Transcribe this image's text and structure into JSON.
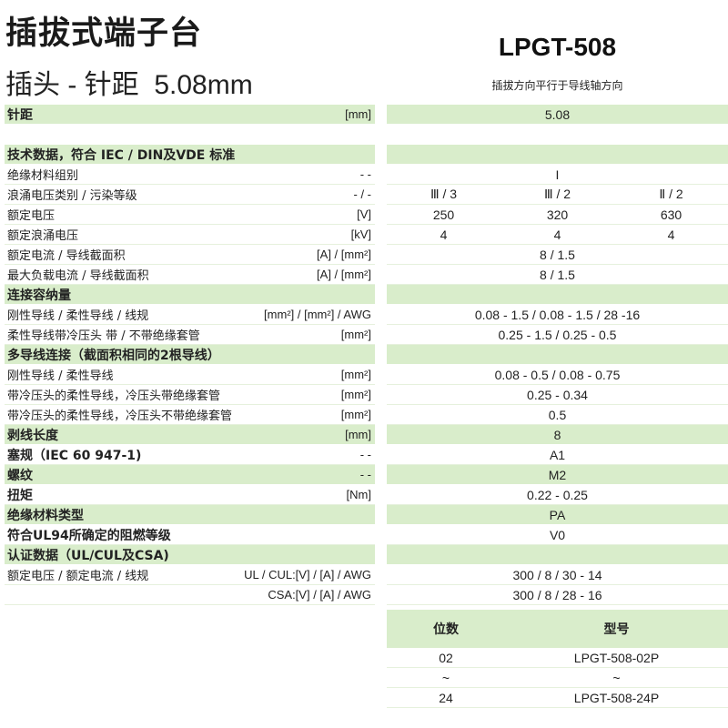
{
  "header": {
    "title": "插拔式端子台",
    "subtitle": "插头 - 针距  5.08mm",
    "model": "LPGT-508",
    "description": "插拔方向平行于导线轴方向"
  },
  "spec_rows": [
    {
      "label": "针距",
      "unit": "[mm]",
      "values": [
        "5.08"
      ],
      "style": "h"
    },
    {
      "spacer": true
    },
    {
      "label": "技术数据，符合 IEC / DIN及VDE 标准",
      "unit": "",
      "values": [],
      "style": "h"
    },
    {
      "label": "绝缘材料组别",
      "unit": "- -",
      "values": [
        "I"
      ],
      "style": "n"
    },
    {
      "label": "浪涌电压类别 / 污染等级",
      "unit": "- / -",
      "values": [
        "Ⅲ / 3",
        "Ⅲ / 2",
        "Ⅱ / 2"
      ],
      "style": "n"
    },
    {
      "label": "额定电压",
      "unit": "[V]",
      "values": [
        "250",
        "320",
        "630"
      ],
      "style": "n"
    },
    {
      "label": "额定浪涌电压",
      "unit": "[kV]",
      "values": [
        "4",
        "4",
        "4"
      ],
      "style": "n"
    },
    {
      "label": "额定电流 / 导线截面积",
      "unit": "[A] / [mm²]",
      "values": [
        "8 / 1.5"
      ],
      "style": "n"
    },
    {
      "label": "最大负载电流 / 导线截面积",
      "unit": "[A] / [mm²]",
      "values": [
        "8 / 1.5"
      ],
      "style": "n"
    },
    {
      "label": "连接容纳量",
      "unit": "",
      "values": [],
      "style": "h"
    },
    {
      "label": "刚性导线 / 柔性导线 / 线规",
      "unit": "[mm²] / [mm²] / AWG",
      "values": [
        "0.08 - 1.5 / 0.08 - 1.5 / 28 -16"
      ],
      "style": "n"
    },
    {
      "label": "柔性导线带冷压头 带 / 不带绝缘套管",
      "unit": "[mm²]",
      "values": [
        "0.25 - 1.5 / 0.25 - 0.5"
      ],
      "style": "n"
    },
    {
      "label": "多导线连接（截面积相同的2根导线）",
      "unit": "",
      "values": [],
      "style": "h"
    },
    {
      "label": "刚性导线 / 柔性导线",
      "unit": "[mm²]",
      "values": [
        "0.08 - 0.5 / 0.08 - 0.75"
      ],
      "style": "n"
    },
    {
      "label": "带冷压头的柔性导线，冷压头带绝缘套管",
      "unit": "[mm²]",
      "values": [
        "0.25 - 0.34"
      ],
      "style": "n"
    },
    {
      "label": "带冷压头的柔性导线，冷压头不带绝缘套管",
      "unit": "[mm²]",
      "values": [
        "0.5"
      ],
      "style": "n"
    },
    {
      "label": "剥线长度",
      "unit": "[mm]",
      "values": [
        "8"
      ],
      "style": "h"
    },
    {
      "label": "塞规（IEC 60 947-1)",
      "unit": "- -",
      "values": [
        "A1"
      ],
      "style": "b"
    },
    {
      "label": "螺纹",
      "unit": "- -",
      "values": [
        "M2"
      ],
      "style": "h"
    },
    {
      "label": "扭矩",
      "unit": "[Nm]",
      "values": [
        "0.22 - 0.25"
      ],
      "style": "b"
    },
    {
      "label": "绝缘材料类型",
      "unit": "",
      "values": [
        "PA"
      ],
      "style": "h"
    },
    {
      "label": "符合UL94所确定的阻燃等级",
      "unit": "",
      "values": [
        "V0"
      ],
      "style": "b"
    },
    {
      "label": "认证数据（UL/CUL及CSA)",
      "unit": "",
      "values": [],
      "style": "h"
    },
    {
      "label": "额定电压 / 额定电流 / 线规",
      "unit": "UL / CUL:[V] / [A] / AWG",
      "values": [
        "300 / 8 / 30 - 14"
      ],
      "style": "n"
    },
    {
      "label": "",
      "unit": "CSA:[V] / [A] / AWG",
      "values": [
        "300 / 8 / 28 - 16"
      ],
      "style": "n"
    }
  ],
  "products": {
    "headers": [
      "位数",
      "型号"
    ],
    "rows": [
      [
        "02",
        "LPGT-508-02P"
      ],
      [
        "~",
        "~"
      ],
      [
        "24",
        "LPGT-508-24P"
      ]
    ]
  },
  "colors": {
    "header_green": "#d9edcb",
    "separator": "#e6f1dd"
  }
}
